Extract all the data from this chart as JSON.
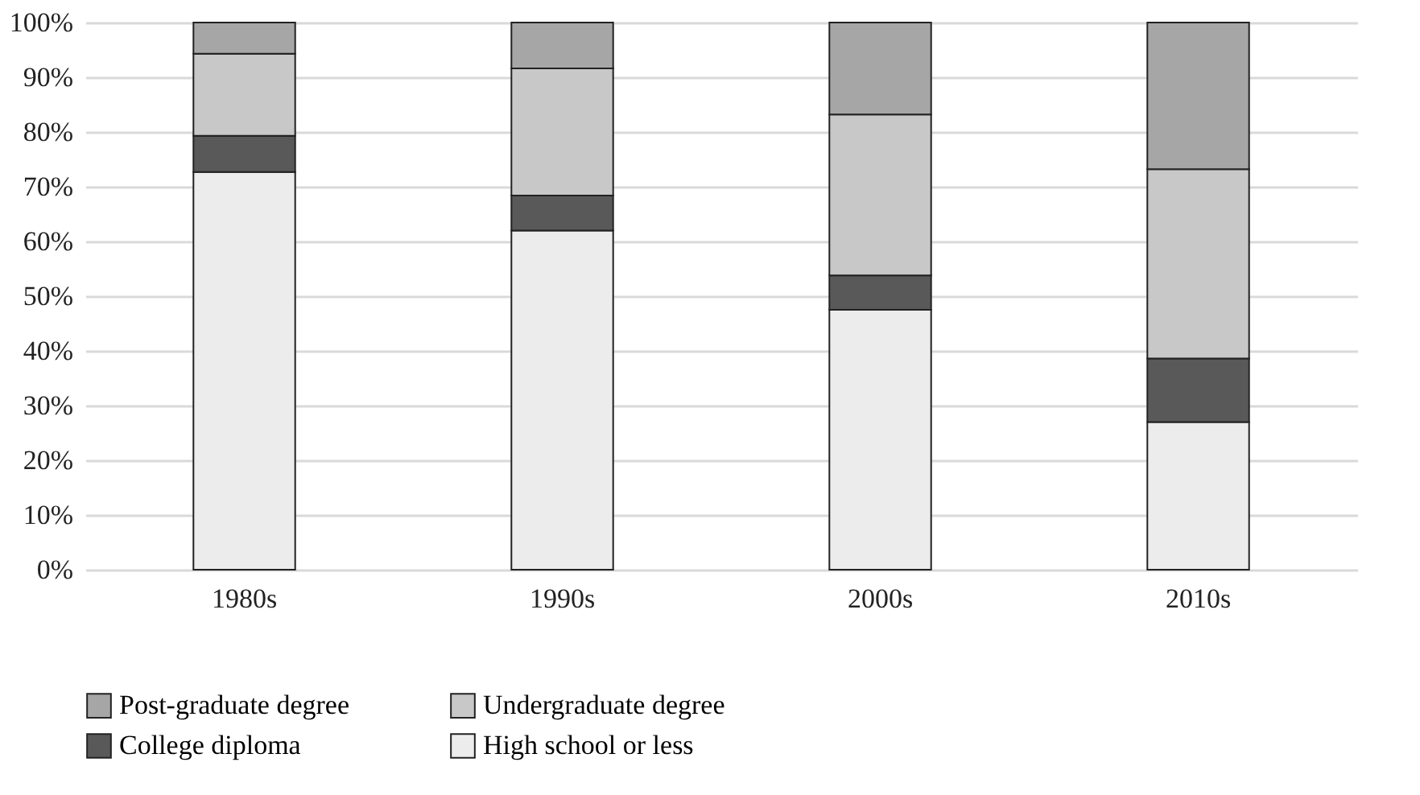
{
  "chart_data": {
    "type": "bar",
    "stacked": true,
    "categories": [
      "1980s",
      "1990s",
      "2000s",
      "2010s"
    ],
    "series": [
      {
        "name": "High school or less",
        "color": "#ececec",
        "values": [
          72.7,
          62.0,
          47.5,
          27.0
        ]
      },
      {
        "name": "College diploma",
        "color": "#595959",
        "values": [
          6.6,
          6.4,
          6.3,
          11.6
        ]
      },
      {
        "name": "Undergraduate degree",
        "color": "#c8c8c8",
        "values": [
          15.0,
          23.2,
          29.4,
          34.6
        ]
      },
      {
        "name": "Post-graduate degree",
        "color": "#a6a6a6",
        "values": [
          5.7,
          8.4,
          16.8,
          26.8
        ]
      }
    ],
    "ylim": [
      0,
      100
    ],
    "yticks": [
      {
        "value": 0,
        "label": "0%"
      },
      {
        "value": 10,
        "label": "10%"
      },
      {
        "value": 20,
        "label": "20%"
      },
      {
        "value": 30,
        "label": "30%"
      },
      {
        "value": 40,
        "label": "40%"
      },
      {
        "value": 50,
        "label": "50%"
      },
      {
        "value": 60,
        "label": "60%"
      },
      {
        "value": 70,
        "label": "70%"
      },
      {
        "value": 80,
        "label": "80%"
      },
      {
        "value": 90,
        "label": "90%"
      },
      {
        "value": 100,
        "label": "100%"
      }
    ],
    "grid": "y",
    "legend": "bottom"
  }
}
